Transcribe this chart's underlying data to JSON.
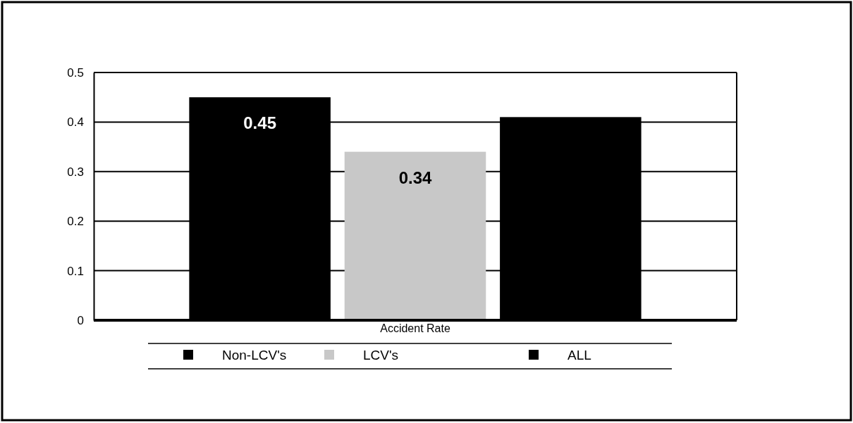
{
  "chart_data": {
    "type": "bar",
    "categories": [
      "Accident Rate"
    ],
    "series": [
      {
        "name": "Non-LCV's",
        "color": "#000000",
        "values": [
          0.45
        ],
        "value_labels": [
          "0.45"
        ]
      },
      {
        "name": "LCV's",
        "color": "#c8c8c8",
        "values": [
          0.34
        ],
        "value_labels": [
          "0.34"
        ]
      },
      {
        "name": "ALL",
        "color": "#000000",
        "values": [
          0.41
        ],
        "value_labels": [
          null
        ]
      }
    ],
    "ylim": [
      0,
      0.5
    ],
    "yticks": [
      0,
      0.1,
      0.2,
      0.3,
      0.4,
      0.5
    ],
    "grid": "y",
    "legend": "bottom"
  }
}
